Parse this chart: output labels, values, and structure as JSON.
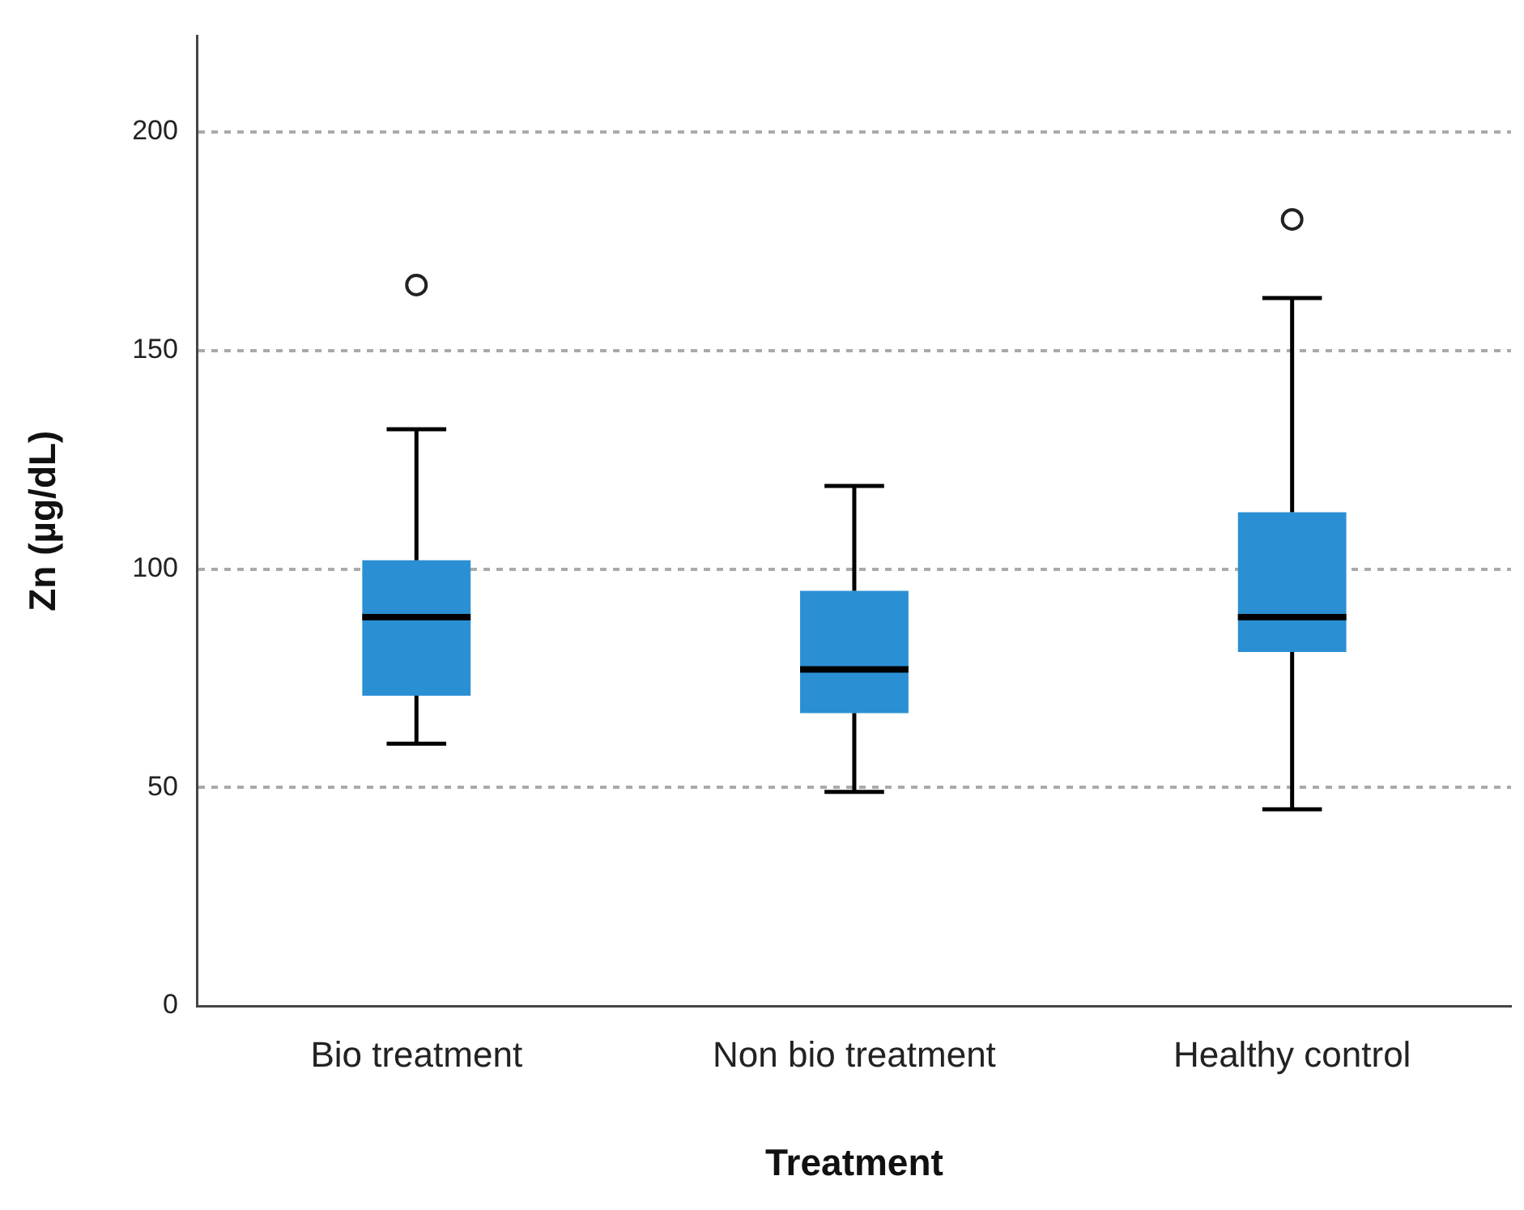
{
  "chart_data": {
    "type": "box",
    "xlabel": "Treatment",
    "ylabel": "Zn (µg/dL)",
    "categories": [
      "Bio treatment",
      "Non bio treatment",
      "Healthy control"
    ],
    "color": "#2b8fd4",
    "boxes": [
      {
        "low": 60,
        "q1": 71,
        "median": 89,
        "q3": 102,
        "high": 132,
        "outliers": [
          165
        ]
      },
      {
        "low": 49,
        "q1": 67,
        "median": 77,
        "q3": 95,
        "high": 119
      },
      {
        "low": 45,
        "q1": 81,
        "median": 89,
        "q3": 113,
        "high": 162,
        "outliers": [
          180
        ]
      }
    ],
    "ylim": [
      0,
      222
    ],
    "yticks": [
      0,
      50,
      100,
      150,
      200
    ],
    "grid": "y",
    "legend": false
  }
}
